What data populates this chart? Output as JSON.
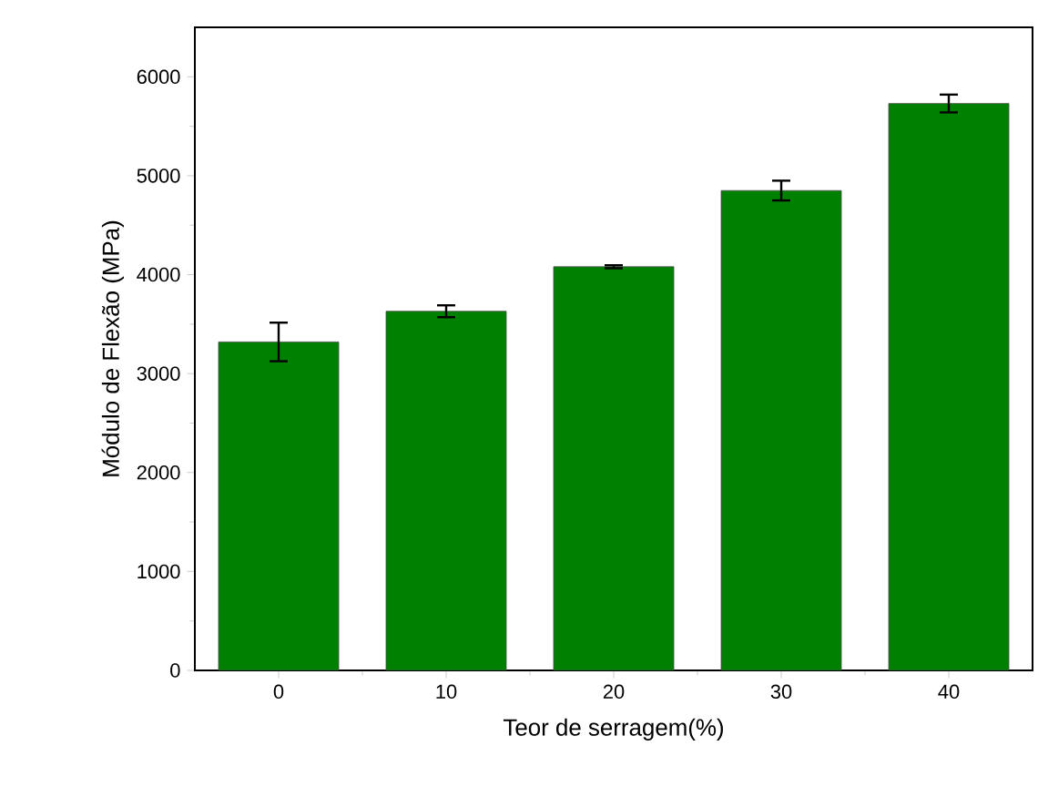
{
  "chart_data": {
    "type": "bar",
    "xlabel": "Teor de serragem(%)",
    "ylabel": "Módulo de Flexão (MPa)",
    "categories": [
      "0",
      "10",
      "20",
      "30",
      "40"
    ],
    "values": [
      3320,
      3630,
      4080,
      4850,
      5730
    ],
    "errors": [
      195,
      60,
      15,
      100,
      90
    ],
    "color": "#008000",
    "ylim": [
      0,
      6500
    ],
    "yticks": [
      0,
      1000,
      2000,
      3000,
      4000,
      5000,
      6000
    ]
  }
}
